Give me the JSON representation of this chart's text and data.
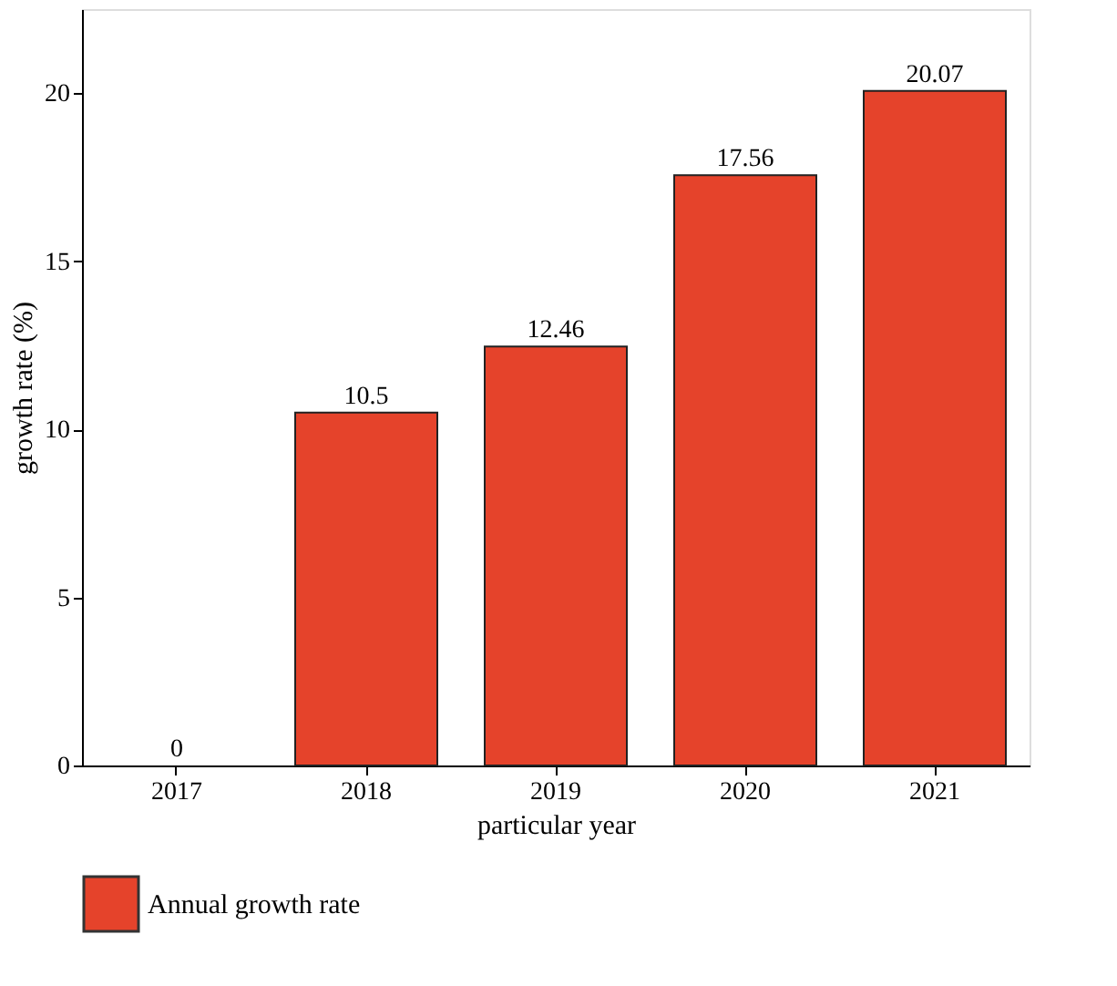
{
  "chart_data": {
    "type": "bar",
    "xlabel": "particular year",
    "ylabel": "growth rate (%)",
    "categories": [
      "2017",
      "2018",
      "2019",
      "2020",
      "2021"
    ],
    "series": [
      {
        "name": "Annual growth rate",
        "color": "#e5432b",
        "values": [
          0,
          10.5,
          12.46,
          17.56,
          20.07
        ]
      }
    ],
    "ylim": [
      0,
      22.5
    ],
    "yticks": [
      0,
      5,
      10,
      15,
      20
    ],
    "data_labels": true,
    "grid": false,
    "legend": "bottom left"
  }
}
